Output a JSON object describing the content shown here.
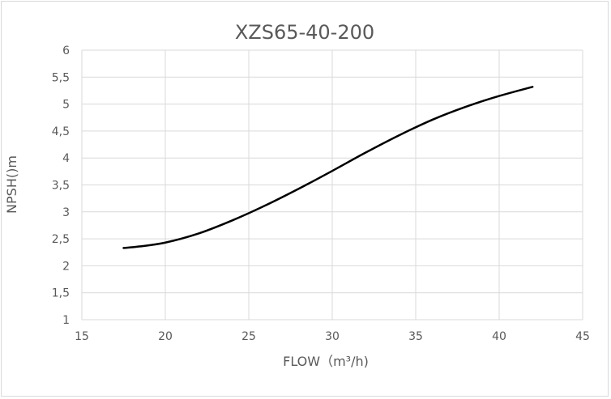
{
  "chart_data": {
    "type": "line",
    "title": "XZS65-40-200",
    "xlabel": "FLOW（m³/h)",
    "ylabel": "NPSH()m",
    "xlim": [
      15,
      45
    ],
    "ylim": [
      1,
      6
    ],
    "x_ticks": [
      "15",
      "20",
      "25",
      "30",
      "35",
      "40",
      "45"
    ],
    "y_ticks": [
      "1",
      "1,5",
      "2",
      "2,5",
      "3",
      "3,5",
      "4",
      "4,5",
      "5",
      "5,5",
      "6"
    ],
    "grid": true,
    "legend": "none",
    "series": [
      {
        "color": "#000000",
        "x": [
          17.5,
          18.5,
          20,
          22,
          24,
          26,
          28,
          30,
          32,
          34,
          36,
          38,
          40,
          42
        ],
        "y": [
          2.33,
          2.36,
          2.43,
          2.6,
          2.84,
          3.12,
          3.43,
          3.76,
          4.1,
          4.42,
          4.71,
          4.95,
          5.15,
          5.32
        ]
      }
    ]
  }
}
